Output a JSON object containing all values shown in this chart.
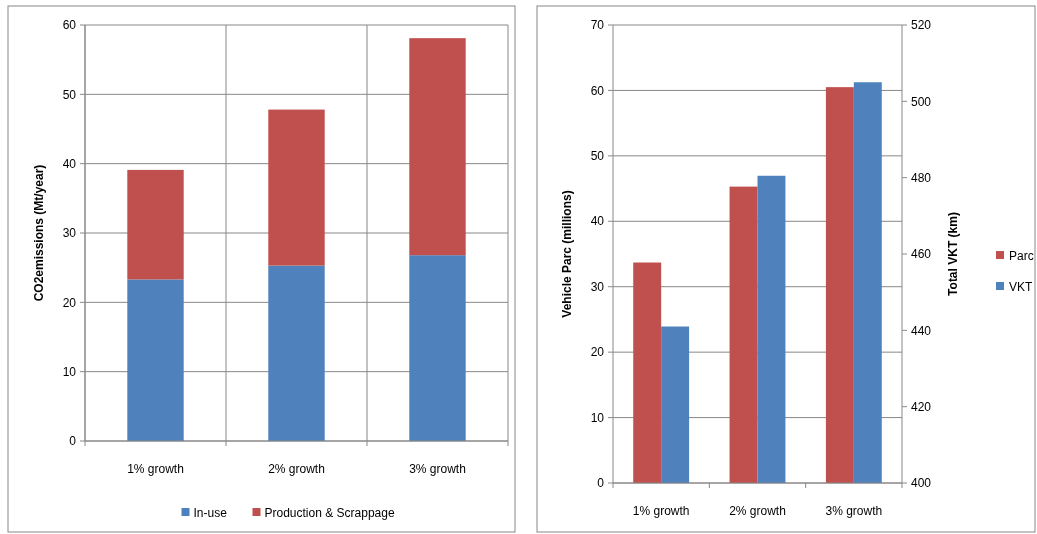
{
  "chart_data": [
    {
      "type": "bar",
      "categories": [
        "1% growth",
        "2% growth",
        "3% growth"
      ],
      "ylabel": "CO2emissions (Mt/year)",
      "stacked": true,
      "series": [
        {
          "name": "In-use",
          "color": "#4f81bd",
          "values": [
            23.3,
            25.3,
            26.8
          ]
        },
        {
          "name": "Production & Scrappage",
          "color": "#c0504d",
          "values": [
            15.8,
            22.5,
            31.3
          ]
        }
      ],
      "ylim": [
        0,
        60
      ],
      "yticks": [
        0,
        10,
        20,
        30,
        40,
        50,
        60
      ],
      "grid": true,
      "legend": "bottom"
    },
    {
      "type": "bar",
      "categories": [
        "1% growth",
        "2% growth",
        "3% growth"
      ],
      "ylabel": "Vehicle Parc (millions)",
      "y2label": "Total VKT (km)",
      "series": [
        {
          "name": "Parc",
          "color": "#c0504d",
          "values": [
            33.7,
            45.3,
            60.5
          ]
        },
        {
          "name": "VKT",
          "color": "#4f81bd",
          "values": [
            441,
            480.5,
            505
          ],
          "axis": "y2"
        }
      ],
      "ylim": [
        0,
        70
      ],
      "yticks": [
        0,
        10,
        20,
        30,
        40,
        50,
        60,
        70
      ],
      "y2lim": [
        400,
        520
      ],
      "y2ticks": [
        400,
        420,
        440,
        460,
        480,
        500,
        520
      ],
      "grid": "y",
      "legend": "right"
    }
  ]
}
